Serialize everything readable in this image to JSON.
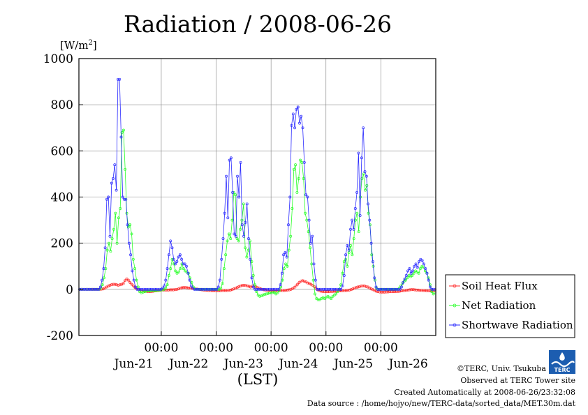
{
  "chart_data": {
    "type": "line",
    "title": "Radiation / 2008-06-26",
    "ylabel": "[W/m2]",
    "ylabel_base": "[W/m",
    "ylabel_sup": "2",
    "ylabel_end": "]",
    "xlabel": "(LST)",
    "ylim": [
      -200,
      1000
    ],
    "yticks": [
      -200,
      0,
      200,
      400,
      600,
      800,
      1000
    ],
    "x_range": [
      "2008-06-20 12:00",
      "2008-06-26 24:00"
    ],
    "x_tick_labels": [
      "00:00",
      "00:00",
      "00:00",
      "00:00",
      "00:00"
    ],
    "day_labels": [
      "Jun-21",
      "Jun-22",
      "Jun-23",
      "Jun-24",
      "Jun-25",
      "Jun-26"
    ],
    "grid": true,
    "legend_position": "right",
    "sampling": "30 min",
    "series": [
      {
        "name": "Soil Heat Flux",
        "color": "#ff2a2a",
        "values": [
          0,
          0,
          0,
          0,
          0,
          0,
          0,
          0,
          0,
          0,
          0,
          0,
          0,
          1,
          2,
          5,
          10,
          14,
          18,
          20,
          22,
          22,
          20,
          18,
          20,
          22,
          25,
          38,
          45,
          40,
          30,
          22,
          15,
          8,
          3,
          0,
          -3,
          -5,
          -7,
          -8,
          -9,
          -10,
          -10,
          -9,
          -8,
          -7,
          -6,
          -5,
          -4,
          -3,
          -3,
          -3,
          -3,
          -3,
          -2,
          -2,
          -2,
          -1,
          0,
          2,
          5,
          7,
          8,
          8,
          7,
          6,
          5,
          4,
          3,
          2,
          1,
          0,
          -1,
          -2,
          -3,
          -4,
          -4,
          -5,
          -5,
          -6,
          -6,
          -6,
          -6,
          -6,
          -6,
          -5,
          -5,
          -5,
          -5,
          -4,
          -3,
          -1,
          2,
          5,
          8,
          12,
          15,
          17,
          18,
          17,
          15,
          13,
          10,
          14,
          15,
          12,
          8,
          5,
          2,
          0,
          -2,
          -3,
          -4,
          -5,
          -6,
          -6,
          -6,
          -6,
          -6,
          -6,
          -5,
          -5,
          -5,
          -4,
          -3,
          -2,
          0,
          3,
          8,
          15,
          22,
          30,
          35,
          38,
          35,
          32,
          28,
          25,
          22,
          18,
          12,
          5,
          -2,
          -6,
          -8,
          -9,
          -10,
          -10,
          -10,
          -10,
          -9,
          -9,
          -8,
          -8,
          -7,
          -7,
          -6,
          -6,
          -5,
          -5,
          -4,
          -3,
          -1,
          2,
          5,
          8,
          10,
          12,
          14,
          15,
          15,
          12,
          10,
          6,
          2,
          -1,
          -5,
          -8,
          -10,
          -11,
          -12,
          -12,
          -12,
          -11,
          -11,
          -10,
          -10,
          -10,
          -10,
          -9,
          -9,
          -8,
          -7,
          -6,
          -5,
          -4,
          -3,
          -2,
          -1,
          -1,
          -2,
          -3,
          -3,
          -4,
          -4,
          -5,
          -5,
          -6,
          -6,
          -7,
          -7,
          -7,
          -7
        ]
      },
      {
        "name": "Net Radiation",
        "color": "#2aff2a",
        "values": [
          0,
          0,
          0,
          0,
          0,
          0,
          0,
          0,
          0,
          0,
          0,
          0,
          0,
          5,
          20,
          50,
          90,
          170,
          200,
          165,
          220,
          260,
          330,
          200,
          310,
          350,
          680,
          690,
          520,
          330,
          270,
          280,
          240,
          130,
          90,
          40,
          10,
          -10,
          -15,
          -12,
          -10,
          -8,
          -7,
          -7,
          -6,
          -6,
          -6,
          -6,
          -5,
          -4,
          -3,
          -2,
          0,
          5,
          20,
          60,
          90,
          130,
          110,
          80,
          70,
          75,
          90,
          110,
          90,
          80,
          75,
          70,
          50,
          30,
          10,
          2,
          0,
          0,
          0,
          0,
          0,
          0,
          0,
          0,
          0,
          0,
          0,
          0,
          0,
          0,
          0,
          5,
          25,
          90,
          150,
          210,
          240,
          220,
          300,
          420,
          410,
          220,
          210,
          260,
          300,
          370,
          180,
          140,
          170,
          210,
          120,
          60,
          20,
          -10,
          -25,
          -30,
          -28,
          -25,
          -22,
          -20,
          -18,
          -16,
          -15,
          -14,
          -13,
          -20,
          -15,
          -5,
          10,
          40,
          90,
          110,
          100,
          170,
          230,
          350,
          520,
          540,
          420,
          480,
          560,
          550,
          480,
          330,
          300,
          250,
          180,
          110,
          40,
          -20,
          -40,
          -45,
          -45,
          -40,
          -35,
          -40,
          -35,
          -30,
          -35,
          -40,
          -30,
          -25,
          -20,
          -10,
          0,
          20,
          70,
          120,
          130,
          100,
          160,
          190,
          150,
          220,
          300,
          330,
          250,
          400,
          480,
          500,
          430,
          450,
          330,
          280,
          150,
          100,
          40,
          5,
          0,
          0,
          0,
          0,
          0,
          0,
          0,
          0,
          0,
          0,
          0,
          0,
          0,
          5,
          15,
          25,
          35,
          40,
          50,
          60,
          55,
          60,
          70,
          80,
          75,
          70,
          90,
          100,
          95,
          80,
          70,
          50,
          20,
          -10,
          -20,
          -15
        ]
      },
      {
        "name": "Shortwave Radiation",
        "color": "#2a2aff",
        "values": [
          0,
          0,
          0,
          0,
          0,
          0,
          0,
          0,
          0,
          0,
          0,
          0,
          0,
          10,
          40,
          90,
          180,
          390,
          400,
          230,
          460,
          480,
          540,
          430,
          910,
          910,
          660,
          400,
          390,
          390,
          280,
          200,
          150,
          80,
          40,
          10,
          0,
          0,
          0,
          0,
          0,
          0,
          0,
          0,
          0,
          0,
          0,
          0,
          0,
          0,
          0,
          0,
          5,
          15,
          40,
          90,
          150,
          210,
          180,
          130,
          110,
          120,
          140,
          150,
          130,
          110,
          110,
          100,
          70,
          40,
          15,
          5,
          0,
          0,
          0,
          0,
          0,
          0,
          0,
          0,
          0,
          0,
          0,
          0,
          0,
          0,
          0,
          10,
          40,
          130,
          220,
          330,
          490,
          310,
          560,
          570,
          420,
          240,
          230,
          490,
          400,
          550,
          280,
          230,
          290,
          370,
          220,
          130,
          50,
          10,
          0,
          0,
          0,
          0,
          0,
          0,
          0,
          0,
          0,
          0,
          0,
          0,
          0,
          0,
          0,
          0,
          20,
          70,
          150,
          160,
          140,
          280,
          400,
          710,
          760,
          700,
          780,
          790,
          720,
          750,
          700,
          550,
          410,
          400,
          300,
          200,
          230,
          110,
          40,
          0,
          0,
          0,
          0,
          0,
          0,
          0,
          0,
          0,
          0,
          0,
          0,
          0,
          0,
          0,
          0,
          15,
          60,
          150,
          190,
          170,
          260,
          300,
          260,
          350,
          420,
          590,
          320,
          570,
          700,
          510,
          490,
          370,
          300,
          200,
          120,
          50,
          10,
          0,
          0,
          0,
          0,
          0,
          0,
          0,
          0,
          0,
          0,
          0,
          0,
          0,
          0,
          0,
          10,
          30,
          45,
          60,
          80,
          90,
          70,
          80,
          100,
          110,
          95,
          120,
          130,
          125,
          110,
          90,
          70,
          40,
          10,
          0,
          0,
          0
        ]
      }
    ]
  },
  "footer": {
    "copyright": "©TERC, Univ. Tsukuba",
    "site": "Observed at TERC Tower site",
    "created": "Created Automatically at 2008-06-26/23:32:08",
    "source": "Data source : /home/hojyo/new/TERC-data/sorted_data/MET.30m.dat"
  },
  "logo": {
    "text": "TERC",
    "color": "#1c5db0"
  }
}
